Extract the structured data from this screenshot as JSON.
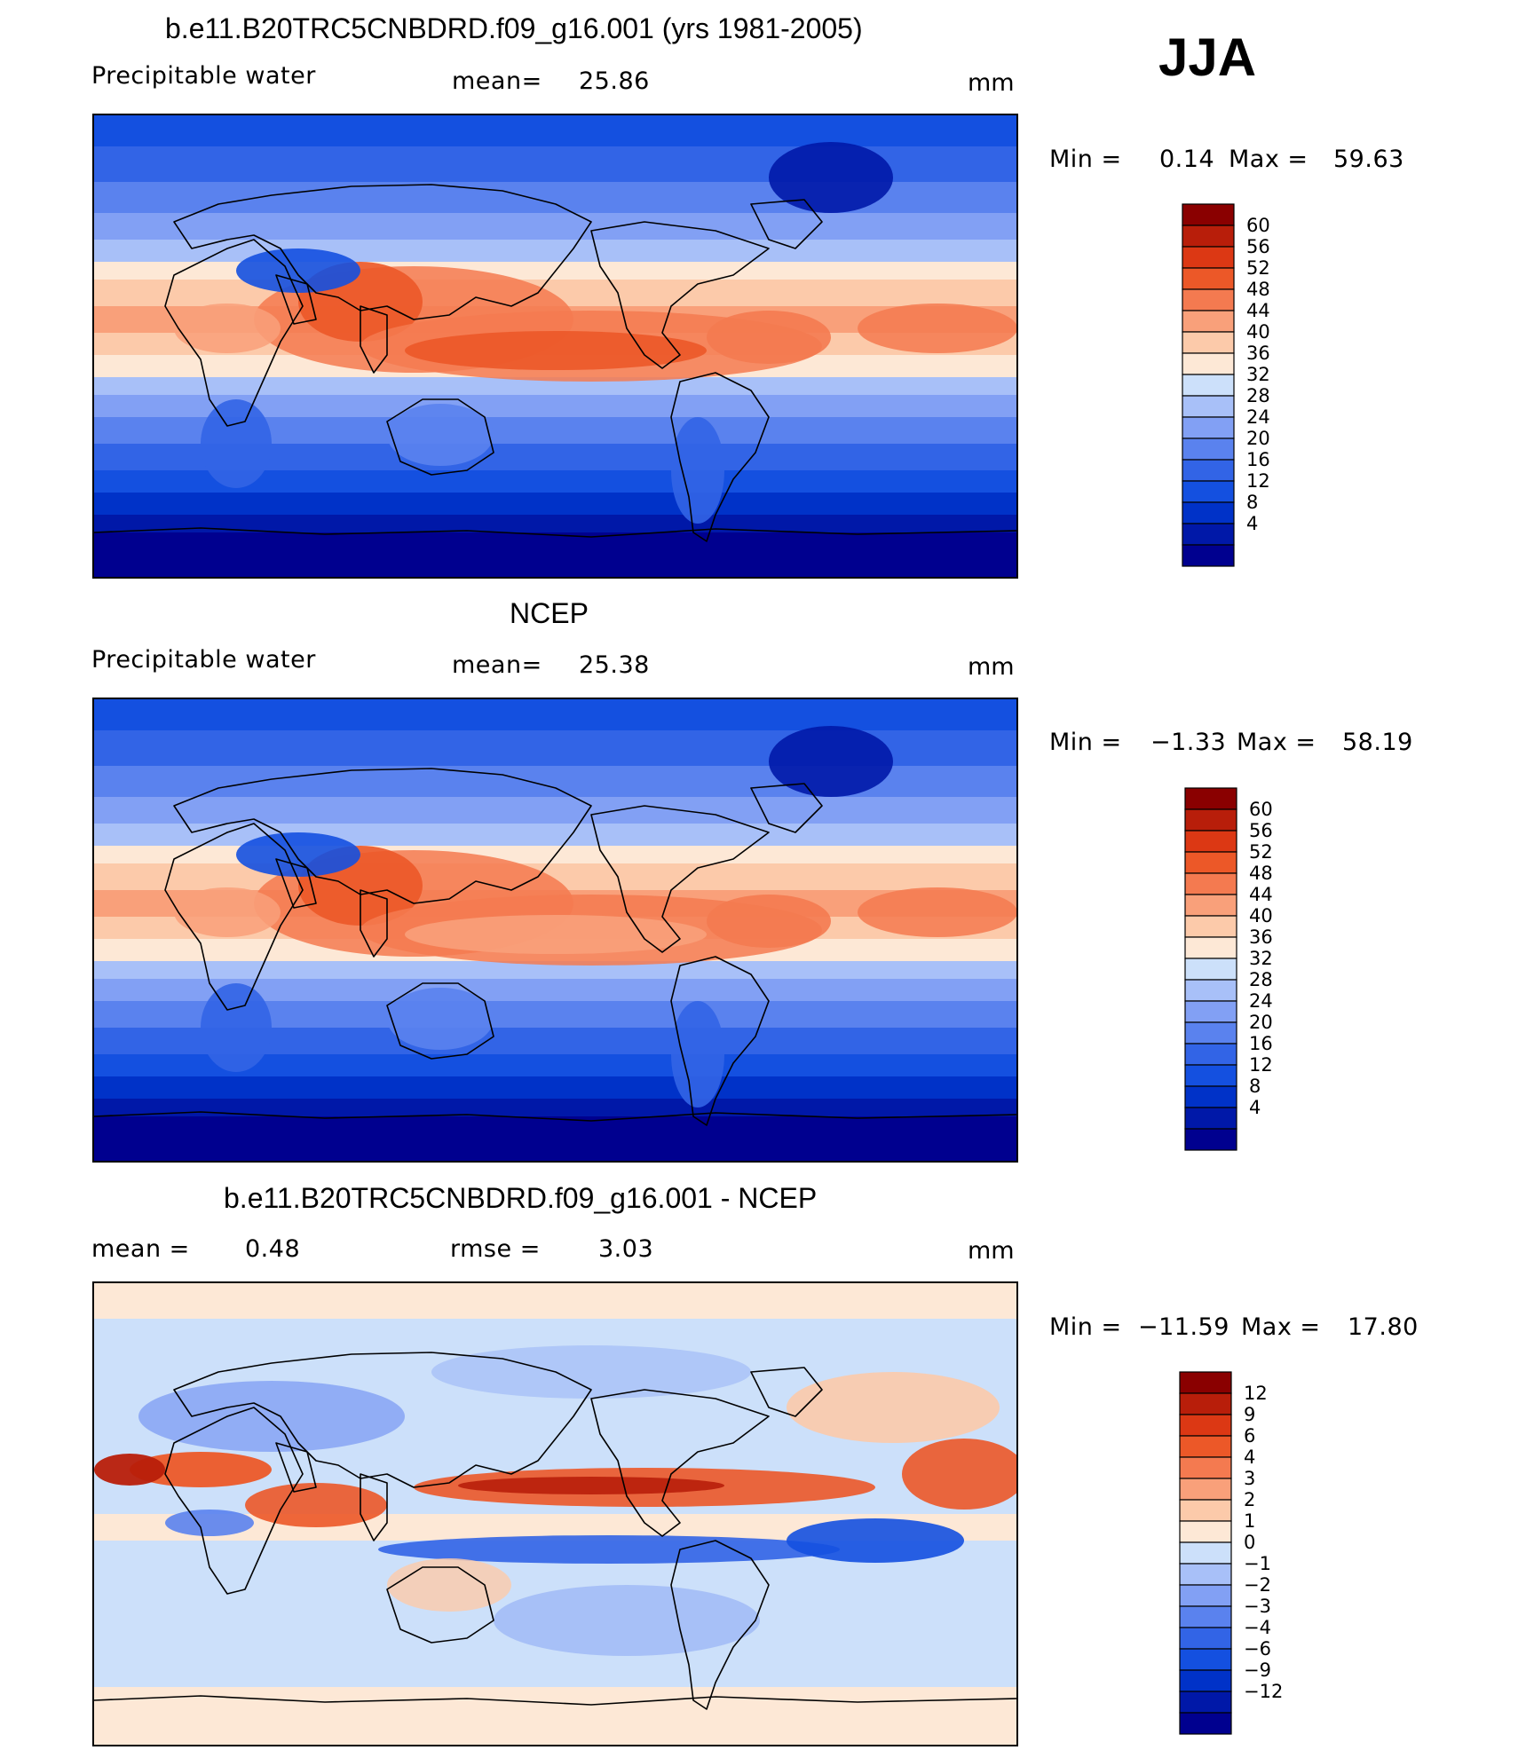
{
  "season": "JJA",
  "units": "mm",
  "colors": {
    "abs_scale": [
      "#00008f",
      "#0018a8",
      "#0032c8",
      "#1450e0",
      "#3264e6",
      "#5a82ee",
      "#82a0f4",
      "#a8c0f8",
      "#cce0fa",
      "#fde8d6",
      "#fccaaa",
      "#f9a07a",
      "#f47a50",
      "#ec5828",
      "#dc3814",
      "#b81e0a",
      "#8a0000"
    ],
    "diff_scale": [
      "#00008f",
      "#0018a8",
      "#0032c8",
      "#1450e0",
      "#3264e6",
      "#5a82ee",
      "#82a0f4",
      "#a8c0f8",
      "#cce0fa",
      "#fde8d6",
      "#fccaaa",
      "#f9a07a",
      "#f47a50",
      "#ec5828",
      "#dc3814",
      "#b81e0a",
      "#8a0000"
    ]
  },
  "panels": [
    {
      "title": "b.e11.B20TRC5CNBDRD.f09_g16.001 (yrs 1981-2005)",
      "left_label": "Precipitable water",
      "mid_label": "mean=",
      "mid_value": "25.86",
      "units": "mm",
      "min_label": "Min =",
      "min_value": "0.14",
      "max_label": "Max =",
      "max_value": "59.63"
    },
    {
      "title": "NCEP",
      "left_label": "Precipitable water",
      "mid_label": "mean=",
      "mid_value": "25.38",
      "units": "mm",
      "min_label": "Min =",
      "min_value": "−1.33",
      "max_label": "Max =",
      "max_value": "58.19"
    },
    {
      "title": "b.e11.B20TRC5CNBDRD.f09_g16.001 - NCEP",
      "left_label": "mean =",
      "left_value": "0.48",
      "mid_label": "rmse =",
      "mid_value": "3.03",
      "units": "mm",
      "min_label": "Min =",
      "min_value": "−11.59",
      "max_label": "Max =",
      "max_value": "17.80"
    }
  ],
  "chart_data": [
    {
      "type": "heatmap",
      "title": "b.e11.B20TRC5CNBDRD.f09_g16.001 (yrs 1981-2005)",
      "variable": "Precipitable water",
      "units": "mm",
      "mean": 25.86,
      "min": 0.14,
      "max": 59.63,
      "colorbar_levels": [
        60,
        56,
        52,
        48,
        44,
        40,
        36,
        32,
        28,
        24,
        20,
        16,
        12,
        8,
        4
      ]
    },
    {
      "type": "heatmap",
      "title": "NCEP",
      "variable": "Precipitable water",
      "units": "mm",
      "mean": 25.38,
      "min": -1.33,
      "max": 58.19,
      "colorbar_levels": [
        60,
        56,
        52,
        48,
        44,
        40,
        36,
        32,
        28,
        24,
        20,
        16,
        12,
        8,
        4
      ]
    },
    {
      "type": "heatmap",
      "title": "b.e11.B20TRC5CNBDRD.f09_g16.001 - NCEP",
      "units": "mm",
      "mean": 0.48,
      "rmse": 3.03,
      "min": -11.59,
      "max": 17.8,
      "colorbar_levels": [
        "12",
        "9",
        "6",
        "4",
        "3",
        "2",
        "1",
        "0",
        "−1",
        "−2",
        "−3",
        "−4",
        "−6",
        "−9",
        "−12"
      ]
    }
  ]
}
